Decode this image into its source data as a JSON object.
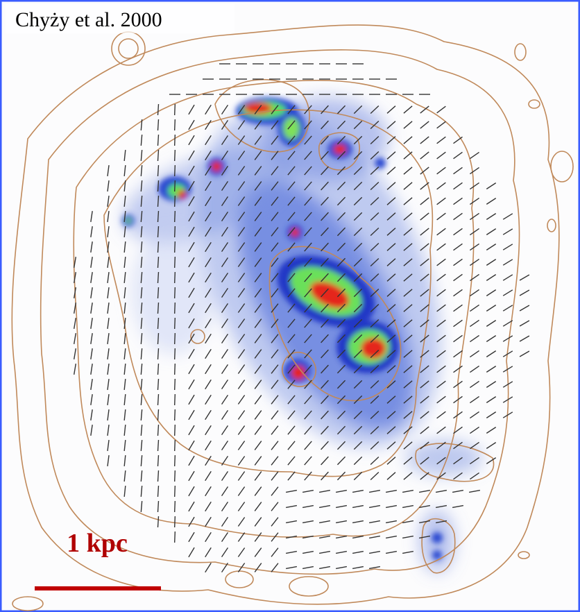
{
  "caption": "Chyży et al. 2000",
  "scale_bar": {
    "label": "1 kpc"
  }
}
